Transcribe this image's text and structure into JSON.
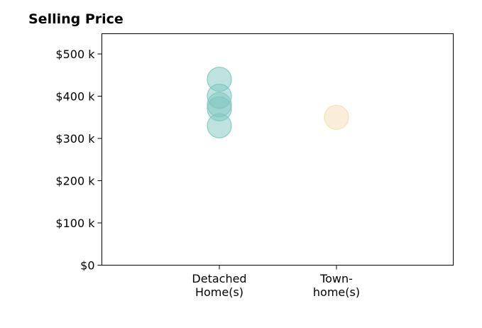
{
  "chart_data": {
    "type": "scatter",
    "title": "Selling Price",
    "xlabel": "",
    "ylabel": "",
    "categories": [
      {
        "label_lines": [
          "Detached",
          "Home(s)"
        ],
        "color": "#7ec8bd"
      },
      {
        "label_lines": [
          "Town-",
          "home(s)"
        ],
        "color": "#f5deb3"
      }
    ],
    "series": [
      {
        "category_index": 0,
        "values": [
          440000,
          400000,
          380000,
          370000,
          330000
        ]
      },
      {
        "category_index": 1,
        "values": [
          350000
        ]
      }
    ],
    "ylim": [
      0,
      550000
    ],
    "y_ticks": [
      {
        "value": 0,
        "label": "$0"
      },
      {
        "value": 100000,
        "label": "$100 k"
      },
      {
        "value": 200000,
        "label": "$200 k"
      },
      {
        "value": 300000,
        "label": "$300 k"
      },
      {
        "value": 400000,
        "label": "$400 k"
      },
      {
        "value": 500000,
        "label": "$500 k"
      }
    ],
    "grid": false,
    "legend": "none"
  }
}
